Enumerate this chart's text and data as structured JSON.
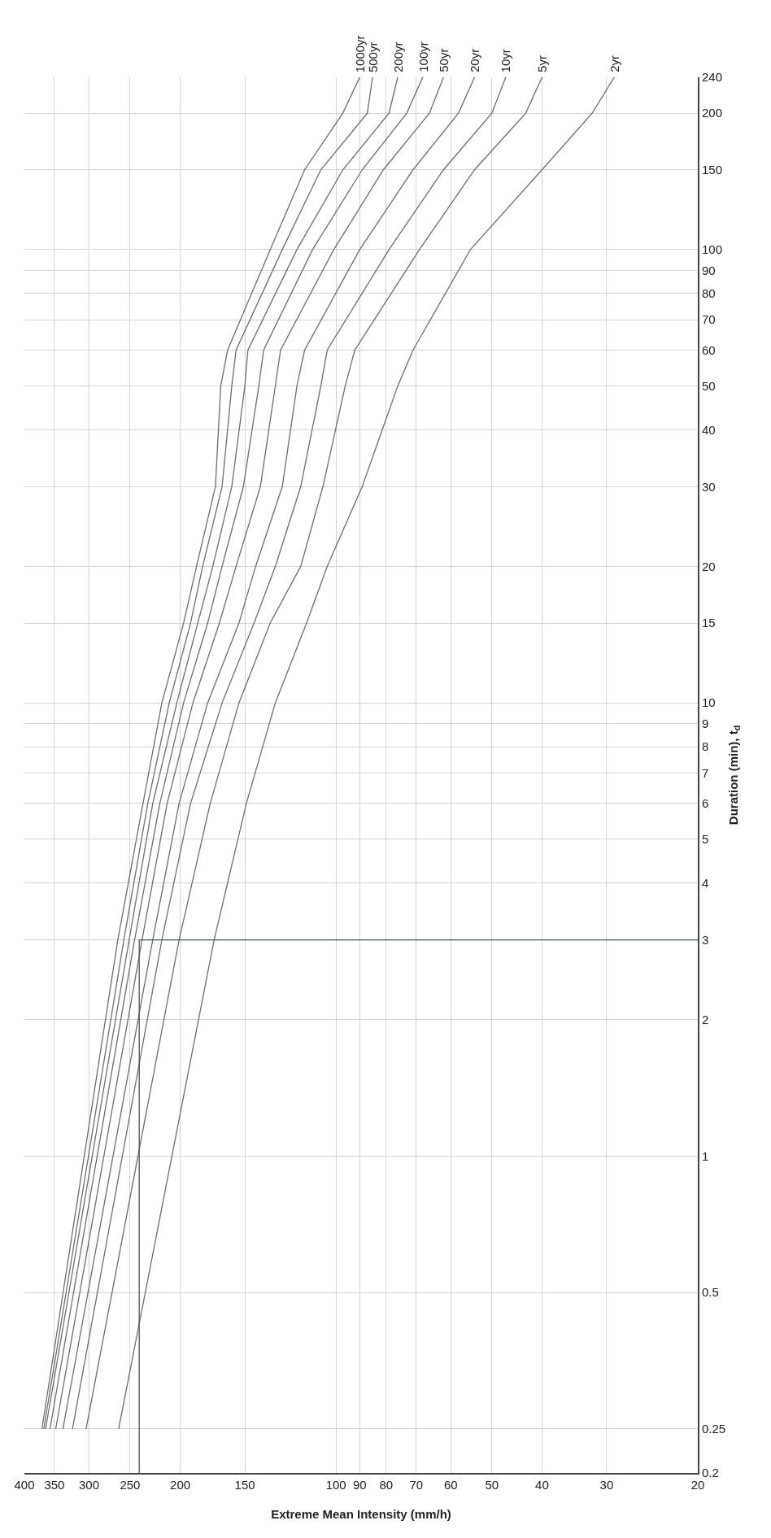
{
  "chart_data": {
    "type": "line",
    "xlabel": "Extreme Mean Intensity (mm/h)",
    "ylabel": "Duration (min), t$_{d}$",
    "log": "xy",
    "grid": true,
    "legend": false,
    "marker": "none",
    "line_style": "solid",
    "xlim": [
      400,
      20
    ],
    "xticks": [
      400,
      350,
      300,
      250,
      200,
      150,
      100,
      90,
      80,
      70,
      60,
      50,
      40,
      30,
      20
    ],
    "ylim": [
      0.2,
      240
    ],
    "yticks": [
      0.2,
      0.25,
      0.5,
      1,
      2,
      3,
      4,
      5,
      6,
      7,
      8,
      9,
      10,
      15,
      20,
      30,
      40,
      50,
      60,
      70,
      80,
      90,
      100,
      150,
      200,
      240
    ],
    "series": [
      {
        "name": "1000yr",
        "color": "#6e6e6e",
        "x": [
          370,
          264,
          236,
          217,
          197,
          186,
          171,
          167,
          162,
          134,
          115,
          97,
          90
        ],
        "values": [
          0.25,
          3,
          6,
          10,
          15,
          20,
          30,
          50,
          60,
          100,
          150,
          200,
          240
        ]
      },
      {
        "name": "500yr",
        "color": "#6e6e6e",
        "x": [
          367,
          257,
          231,
          210,
          191,
          181,
          166,
          159,
          156,
          127,
          107,
          87,
          85
        ],
        "values": [
          0.25,
          3,
          6,
          10,
          15,
          20,
          30,
          50,
          60,
          100,
          150,
          200,
          240
        ]
      },
      {
        "name": "200yr",
        "color": "#6e6e6e",
        "x": [
          364,
          251,
          226,
          203,
          185,
          173,
          159,
          150,
          148,
          119,
          97,
          79,
          76
        ],
        "values": [
          0.25,
          3,
          6,
          10,
          15,
          20,
          30,
          50,
          60,
          100,
          150,
          200,
          240
        ]
      },
      {
        "name": "100yr",
        "color": "#6e6e6e",
        "x": [
          357,
          245,
          219,
          197,
          177,
          166,
          151,
          141,
          138,
          111,
          89,
          73,
          68
        ],
        "values": [
          0.25,
          3,
          6,
          10,
          15,
          20,
          30,
          50,
          60,
          100,
          150,
          200,
          240
        ]
      },
      {
        "name": "50yr",
        "color": "#6e6e6e",
        "x": [
          348,
          237,
          212,
          189,
          168,
          156,
          140,
          131,
          128,
          101,
          81,
          66,
          62
        ],
        "values": [
          0.25,
          3,
          6,
          10,
          15,
          20,
          30,
          50,
          60,
          100,
          150,
          200,
          240
        ]
      },
      {
        "name": "20yr",
        "color": "#6e6e6e",
        "x": [
          337,
          226,
          201,
          177,
          154,
          143,
          127,
          119,
          115,
          90,
          71,
          58,
          54
        ],
        "values": [
          0.25,
          3,
          6,
          10,
          15,
          20,
          30,
          50,
          60,
          100,
          150,
          200,
          240
        ]
      },
      {
        "name": "10yr",
        "color": "#6e6e6e",
        "x": [
          323,
          217,
          191,
          166,
          144,
          131,
          117,
          107,
          104,
          79,
          62,
          50,
          47
        ],
        "values": [
          0.25,
          3,
          6,
          10,
          15,
          20,
          30,
          50,
          60,
          100,
          150,
          200,
          240
        ]
      },
      {
        "name": "5yr",
        "color": "#6e6e6e",
        "x": [
          304,
          201,
          175,
          154,
          134,
          117,
          106,
          96,
          92,
          69,
          54,
          43,
          40
        ],
        "values": [
          0.25,
          3,
          6,
          10,
          15,
          20,
          30,
          50,
          60,
          100,
          150,
          200,
          240
        ]
      },
      {
        "name": "2yr",
        "color": "#6e6e6e",
        "x": [
          263,
          172,
          149,
          131,
          114,
          104,
          89,
          76,
          71,
          55,
          40,
          32,
          29
        ],
        "values": [
          0.25,
          3,
          6,
          10,
          15,
          20,
          30,
          50,
          60,
          100,
          150,
          200,
          240
        ]
      },
      {
        "color": "#4a5560",
        "x": [
          20,
          240,
          240
        ],
        "values": [
          3,
          3,
          0.2
        ]
      }
    ]
  }
}
